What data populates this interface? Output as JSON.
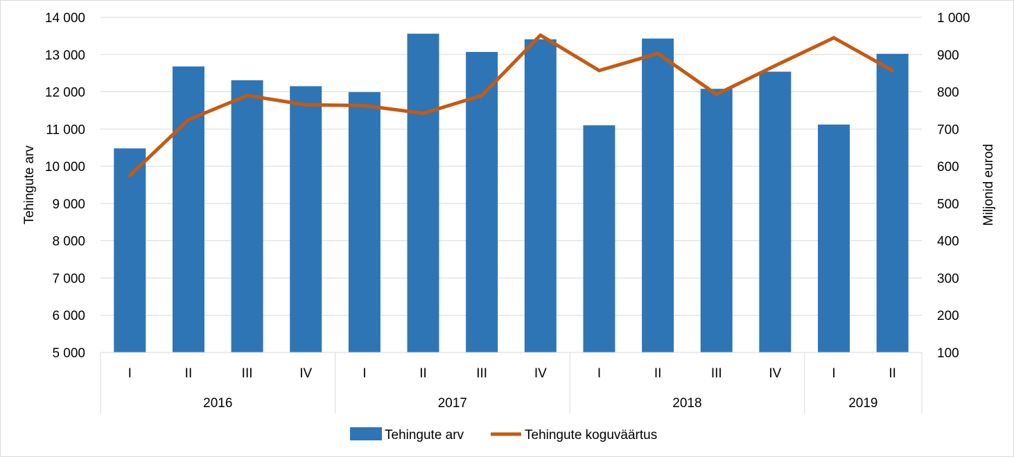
{
  "chart_data": {
    "type": "bar",
    "categories": [
      "I",
      "II",
      "III",
      "IV",
      "I",
      "II",
      "III",
      "IV",
      "I",
      "II",
      "III",
      "IV",
      "I",
      "II"
    ],
    "year_groups": [
      {
        "label": "2016",
        "count": 4
      },
      {
        "label": "2017",
        "count": 4
      },
      {
        "label": "2018",
        "count": 4
      },
      {
        "label": "2019",
        "count": 2
      }
    ],
    "series": [
      {
        "name": "Tehingute arv",
        "type": "bar",
        "axis": "left",
        "color": "#2e75b6",
        "values": [
          10480,
          12680,
          12310,
          12150,
          11990,
          13560,
          13070,
          13410,
          11100,
          13430,
          12080,
          12540,
          11120,
          13020
        ]
      },
      {
        "name": "Tehingute koguväärtus",
        "type": "line",
        "axis": "right",
        "color": "#c55a11",
        "values": [
          575,
          725,
          790,
          765,
          763,
          742,
          790,
          952,
          857,
          903,
          793,
          870,
          945,
          857
        ]
      }
    ],
    "ylabel": "Tehingute arv",
    "y2label": "Miljonid eurod",
    "ylim": [
      5000,
      14000
    ],
    "y2lim": [
      100,
      1000
    ],
    "yticks": [
      "5 000",
      "6 000",
      "7 000",
      "8 000",
      "9 000",
      "10 000",
      "11 000",
      "12 000",
      "13 000",
      "14 000"
    ],
    "y2ticks": [
      "100",
      "200",
      "300",
      "400",
      "500",
      "600",
      "700",
      "800",
      "900",
      "1 000"
    ],
    "grid": true,
    "legend_position": "bottom"
  }
}
